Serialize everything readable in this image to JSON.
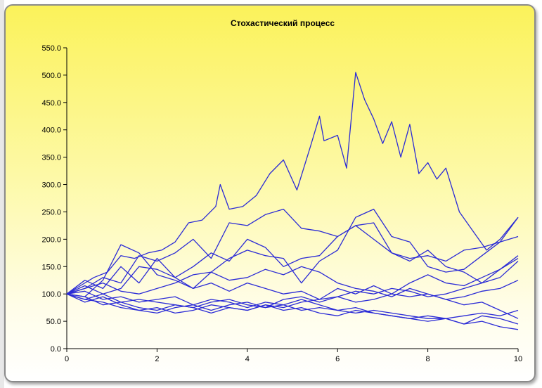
{
  "chart_data": {
    "type": "line",
    "title": "Стохастический процесс",
    "xlabel": "",
    "ylabel": "",
    "xlim": [
      0,
      10
    ],
    "ylim": [
      0,
      550
    ],
    "x_ticks": [
      "0",
      "2",
      "4",
      "6",
      "8",
      "10"
    ],
    "y_ticks": [
      "0.0",
      "50.0",
      "100.0",
      "150.0",
      "200.0",
      "250.0",
      "300.0",
      "350.0",
      "400.0",
      "450.0",
      "500.0",
      "550.0"
    ],
    "grid": false,
    "line_color": "#2b2bd6",
    "background_gradient": [
      "#fbf25a",
      "#ffffff"
    ],
    "series": [
      {
        "x": [
          0,
          0.3,
          0.6,
          0.9,
          1.2,
          1.5,
          1.8,
          2.1,
          2.4,
          2.7,
          3.0,
          3.3,
          3.4,
          3.6,
          3.9,
          4.2,
          4.5,
          4.8,
          5.1,
          5.4,
          5.6,
          5.7,
          6.0,
          6.2,
          6.4,
          6.6,
          6.8,
          7.0,
          7.2,
          7.4,
          7.6,
          7.8,
          8.0,
          8.2,
          8.4,
          8.7,
          9.0,
          9.3,
          9.6,
          10
        ],
        "values": [
          100,
          115,
          130,
          140,
          170,
          165,
          175,
          180,
          195,
          230,
          235,
          260,
          300,
          255,
          260,
          280,
          320,
          345,
          290,
          370,
          425,
          380,
          390,
          330,
          505,
          455,
          420,
          375,
          415,
          350,
          410,
          320,
          340,
          310,
          330,
          250,
          215,
          180,
          200,
          240
        ]
      },
      {
        "x": [
          0,
          0.4,
          0.8,
          1.2,
          1.6,
          2.0,
          2.4,
          2.8,
          3.2,
          3.6,
          4.0,
          4.4,
          4.8,
          5.2,
          5.6,
          6.0,
          6.4,
          6.8,
          7.2,
          7.6,
          8.0,
          8.4,
          8.8,
          9.2,
          9.6,
          10
        ],
        "values": [
          100,
          110,
          130,
          120,
          170,
          160,
          175,
          200,
          165,
          230,
          225,
          245,
          255,
          220,
          215,
          205,
          225,
          200,
          175,
          165,
          170,
          160,
          180,
          185,
          195,
          240
        ]
      },
      {
        "x": [
          0,
          0.4,
          0.8,
          1.2,
          1.6,
          2.0,
          2.4,
          2.8,
          3.2,
          3.6,
          4.0,
          4.4,
          4.8,
          5.2,
          5.6,
          6.0,
          6.4,
          6.8,
          7.2,
          7.6,
          8.0,
          8.4,
          8.8,
          9.2,
          9.6,
          10
        ],
        "values": [
          100,
          125,
          110,
          150,
          120,
          165,
          130,
          150,
          175,
          160,
          200,
          185,
          150,
          165,
          170,
          205,
          225,
          230,
          175,
          160,
          180,
          150,
          140,
          120,
          130,
          160
        ]
      },
      {
        "x": [
          0,
          0.4,
          0.8,
          1.2,
          1.6,
          2.0,
          2.4,
          2.8,
          3.2,
          3.6,
          4.0,
          4.4,
          4.8,
          5.2,
          5.6,
          6.0,
          6.4,
          6.8,
          7.2,
          7.6,
          8.0,
          8.4,
          8.8,
          9.2,
          9.6,
          10
        ],
        "values": [
          100,
          95,
          125,
          190,
          175,
          135,
          125,
          110,
          140,
          165,
          180,
          170,
          165,
          120,
          160,
          180,
          240,
          255,
          205,
          195,
          150,
          140,
          145,
          170,
          195,
          205
        ]
      },
      {
        "x": [
          0,
          0.4,
          0.8,
          1.2,
          1.6,
          2.0,
          2.4,
          2.8,
          3.2,
          3.6,
          4.0,
          4.4,
          4.8,
          5.2,
          5.6,
          6.0,
          6.4,
          6.8,
          7.2,
          7.6,
          8.0,
          8.4,
          8.8,
          9.2,
          9.6,
          10
        ],
        "values": [
          100,
          115,
          100,
          110,
          150,
          145,
          130,
          110,
          120,
          105,
          120,
          110,
          100,
          105,
          90,
          110,
          100,
          115,
          100,
          120,
          135,
          120,
          115,
          130,
          145,
          170
        ]
      },
      {
        "x": [
          0,
          0.4,
          0.8,
          1.2,
          1.6,
          2.0,
          2.4,
          2.8,
          3.2,
          3.6,
          4.0,
          4.4,
          4.8,
          5.2,
          5.6,
          6.0,
          6.4,
          6.8,
          7.2,
          7.6,
          8.0,
          8.4,
          8.8,
          9.2,
          9.6,
          10
        ],
        "values": [
          100,
          90,
          100,
          85,
          90,
          85,
          80,
          75,
          85,
          90,
          80,
          75,
          90,
          95,
          85,
          95,
          85,
          90,
          100,
          95,
          100,
          90,
          95,
          105,
          110,
          125
        ]
      },
      {
        "x": [
          0,
          0.4,
          0.8,
          1.2,
          1.6,
          2.0,
          2.4,
          2.8,
          3.2,
          3.6,
          4.0,
          4.4,
          4.8,
          5.2,
          5.6,
          6.0,
          6.4,
          6.8,
          7.2,
          7.6,
          8.0,
          8.4,
          8.8,
          9.2,
          9.6,
          10
        ],
        "values": [
          100,
          85,
          95,
          80,
          70,
          75,
          65,
          70,
          80,
          75,
          70,
          80,
          75,
          85,
          90,
          95,
          105,
          100,
          110,
          105,
          95,
          100,
          110,
          120,
          145,
          165
        ]
      },
      {
        "x": [
          0,
          0.4,
          0.8,
          1.2,
          1.6,
          2.0,
          2.4,
          2.8,
          3.2,
          3.6,
          4.0,
          4.4,
          4.8,
          5.2,
          5.6,
          6.0,
          6.4,
          6.8,
          7.2,
          7.6,
          8.0,
          8.4,
          8.8,
          9.2,
          9.6,
          10
        ],
        "values": [
          100,
          90,
          85,
          75,
          70,
          65,
          75,
          80,
          70,
          80,
          85,
          75,
          80,
          90,
          80,
          70,
          65,
          70,
          65,
          60,
          55,
          55,
          45,
          60,
          55,
          45
        ]
      },
      {
        "x": [
          0,
          0.4,
          0.8,
          1.2,
          1.6,
          2.0,
          2.4,
          2.8,
          3.2,
          3.6,
          4.0,
          4.4,
          4.8,
          5.2,
          5.6,
          6.0,
          6.4,
          6.8,
          7.2,
          7.6,
          8.0,
          8.4,
          8.8,
          9.2,
          9.6,
          10
        ],
        "values": [
          100,
          95,
          80,
          85,
          75,
          70,
          80,
          75,
          65,
          75,
          70,
          80,
          70,
          75,
          65,
          60,
          70,
          65,
          60,
          55,
          50,
          55,
          60,
          65,
          60,
          70
        ]
      },
      {
        "x": [
          0,
          0.4,
          0.8,
          1.2,
          1.6,
          2.0,
          2.4,
          2.8,
          3.2,
          3.6,
          4.0,
          4.4,
          4.8,
          5.2,
          5.6,
          6.0,
          6.4,
          6.8,
          7.2,
          7.6,
          8.0,
          8.4,
          8.8,
          9.2,
          9.6,
          10
        ],
        "values": [
          100,
          105,
          90,
          95,
          85,
          90,
          95,
          80,
          90,
          85,
          75,
          85,
          80,
          70,
          75,
          70,
          75,
          65,
          60,
          55,
          60,
          55,
          45,
          50,
          40,
          35
        ]
      },
      {
        "x": [
          0,
          0.4,
          0.8,
          1.2,
          1.6,
          2.0,
          2.4,
          2.8,
          3.2,
          3.6,
          4.0,
          4.4,
          4.8,
          5.2,
          5.6,
          6.0,
          6.4,
          6.8,
          7.2,
          7.6,
          8.0,
          8.4,
          8.8,
          9.2,
          9.6,
          10
        ],
        "values": [
          100,
          110,
          120,
          105,
          100,
          110,
          120,
          135,
          140,
          125,
          130,
          145,
          135,
          150,
          140,
          120,
          110,
          105,
          95,
          110,
          100,
          90,
          80,
          85,
          70,
          55
        ]
      }
    ]
  }
}
